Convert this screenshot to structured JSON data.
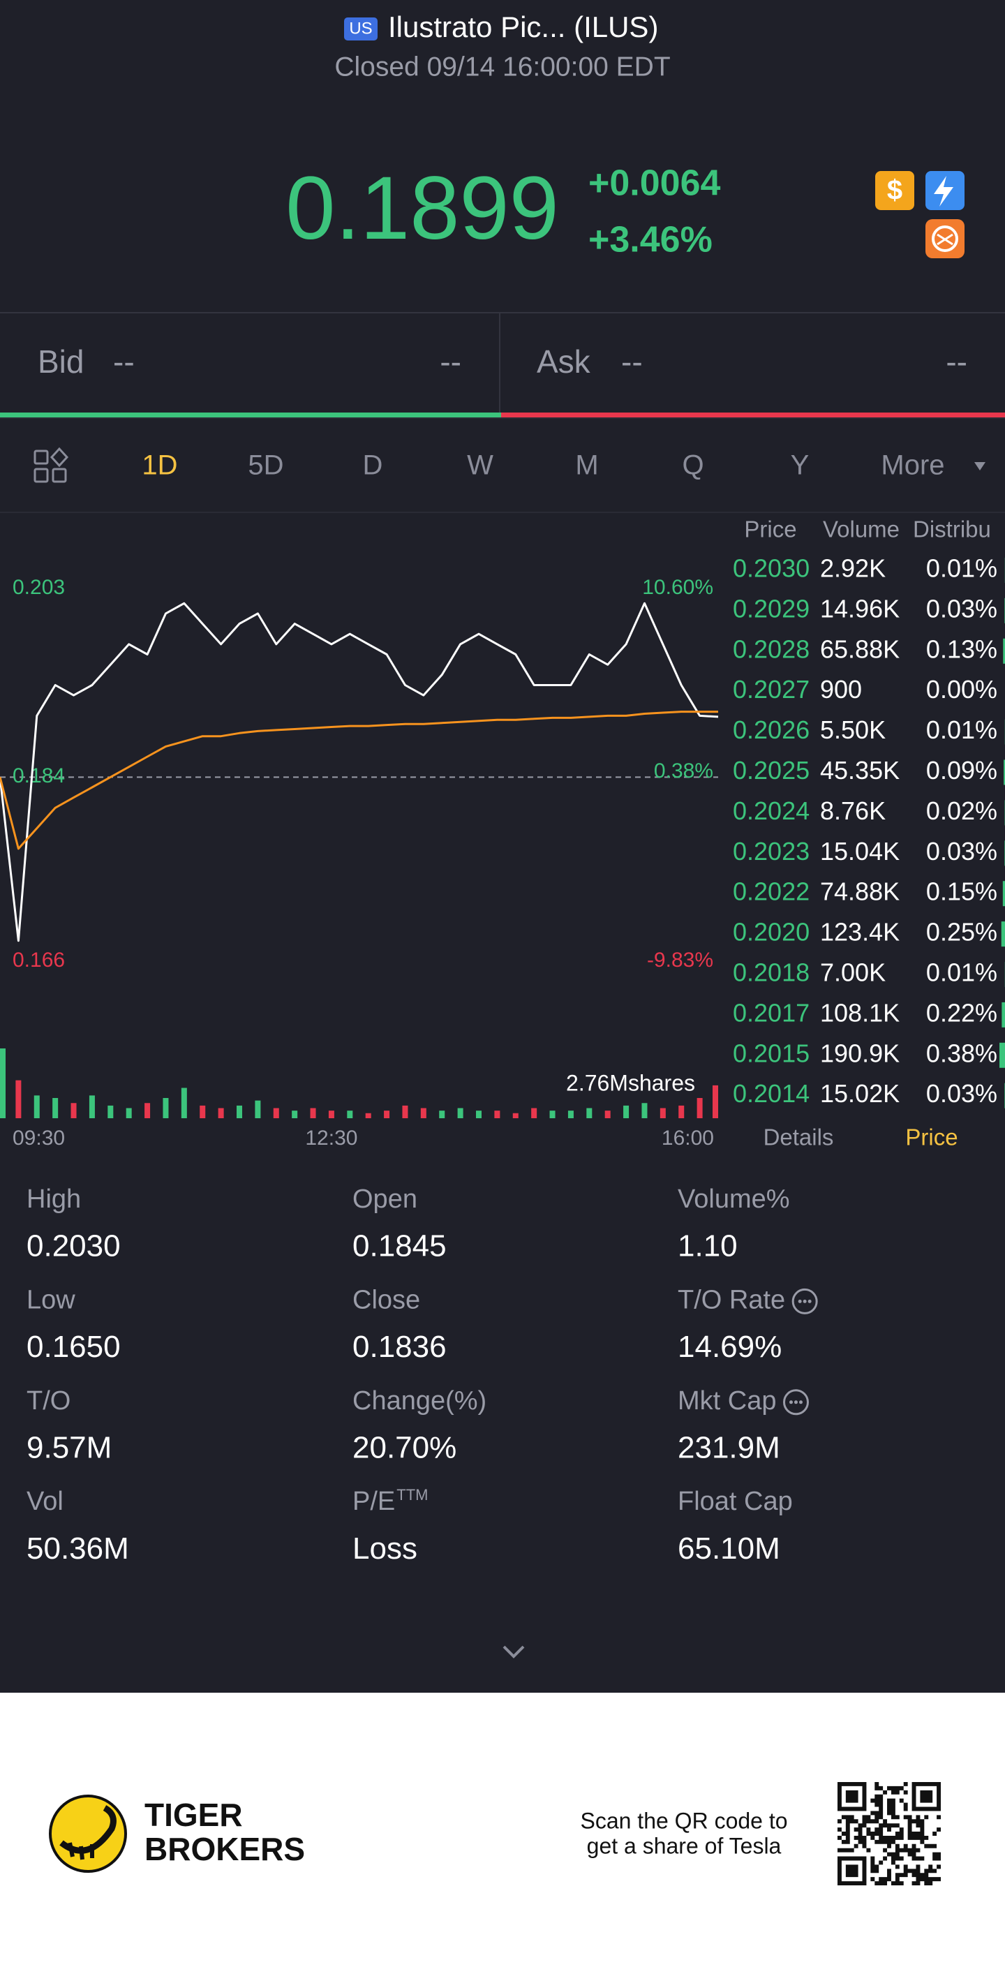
{
  "header": {
    "market_badge": "US",
    "name": "Ilustrato Pic... (ILUS)",
    "status": "Closed 09/14 16:00:00 EDT"
  },
  "quote": {
    "price": "0.1899",
    "change": "+0.0064",
    "change_pct": "+3.46%"
  },
  "bid_ask": {
    "bid_label": "Bid",
    "bid_price": "--",
    "bid_size": "--",
    "ask_label": "Ask",
    "ask_price": "--",
    "ask_size": "--"
  },
  "tabs": {
    "items": [
      "1D",
      "5D",
      "D",
      "W",
      "M",
      "Q",
      "Y",
      "More"
    ],
    "active": "1D"
  },
  "chart_data": {
    "type": "line",
    "x": [
      "09:30",
      "09:40",
      "09:50",
      "10:00",
      "10:10",
      "10:20",
      "10:30",
      "10:40",
      "10:50",
      "11:00",
      "11:10",
      "11:20",
      "11:30",
      "11:40",
      "11:50",
      "12:00",
      "12:10",
      "12:20",
      "12:30",
      "12:40",
      "12:50",
      "13:00",
      "13:10",
      "13:20",
      "13:30",
      "13:40",
      "13:50",
      "14:00",
      "14:10",
      "14:20",
      "14:30",
      "14:40",
      "14:50",
      "15:00",
      "15:10",
      "15:20",
      "15:30",
      "15:40",
      "15:50",
      "16:00"
    ],
    "series": [
      {
        "color": "#ffffff",
        "values": [
          0.184,
          0.168,
          0.19,
          0.193,
          0.192,
          0.193,
          0.195,
          0.197,
          0.196,
          0.2,
          0.201,
          0.199,
          0.197,
          0.199,
          0.2,
          0.197,
          0.199,
          0.198,
          0.197,
          0.198,
          0.197,
          0.196,
          0.193,
          0.192,
          0.194,
          0.197,
          0.198,
          0.197,
          0.196,
          0.193,
          0.193,
          0.193,
          0.196,
          0.195,
          0.197,
          0.201,
          0.197,
          0.193,
          0.19,
          0.1899
        ]
      },
      {
        "color": "#f7931e",
        "values": [
          0.184,
          0.177,
          0.179,
          0.181,
          0.182,
          0.183,
          0.184,
          0.185,
          0.186,
          0.187,
          0.1875,
          0.188,
          0.188,
          0.1883,
          0.1885,
          0.1886,
          0.1887,
          0.1888,
          0.1889,
          0.189,
          0.189,
          0.1891,
          0.1892,
          0.1892,
          0.1893,
          0.1894,
          0.1895,
          0.1896,
          0.1896,
          0.1897,
          0.1898,
          0.1898,
          0.1899,
          0.19,
          0.19,
          0.1902,
          0.1903,
          0.1904,
          0.1904,
          0.1904
        ]
      }
    ],
    "ylim": [
      0.166,
      0.203
    ],
    "yticks": [
      0.166,
      0.184,
      0.203
    ],
    "y2lim": [
      -9.83,
      10.6
    ],
    "y2ticks": [
      {
        "value": -9.83,
        "label": "-9.83%"
      },
      {
        "value": 0.38,
        "label": "0.38%"
      },
      {
        "value": 10.6,
        "label": "10.60%"
      }
    ],
    "reference_line": 0.184,
    "xticks": [
      "09:30",
      "12:30",
      "16:00"
    ],
    "up_color": "#3cc47c",
    "down_color": "#e8374d",
    "volume": {
      "label": "2.76Mshares",
      "values": [
        2.76,
        1.5,
        0.9,
        0.8,
        0.6,
        0.9,
        0.5,
        0.4,
        0.6,
        0.8,
        1.2,
        0.5,
        0.4,
        0.5,
        0.7,
        0.4,
        0.3,
        0.4,
        0.3,
        0.3,
        0.2,
        0.3,
        0.5,
        0.4,
        0.3,
        0.4,
        0.3,
        0.3,
        0.2,
        0.4,
        0.3,
        0.3,
        0.4,
        0.3,
        0.5,
        0.6,
        0.4,
        0.5,
        0.8,
        1.3
      ]
    }
  },
  "order_book": {
    "headers": [
      "Price",
      "Volume",
      "Distribu"
    ],
    "prices": [
      "0.2030",
      "0.2029",
      "0.2028",
      "0.2027",
      "0.2026",
      "0.2025",
      "0.2024",
      "0.2023",
      "0.2022",
      "0.2020",
      "0.2018",
      "0.2017",
      "0.2015",
      "0.2014"
    ],
    "volumes": [
      "2.92K",
      "14.96K",
      "65.88K",
      "900",
      "5.50K",
      "45.35K",
      "8.76K",
      "15.04K",
      "74.88K",
      "123.4K",
      "7.00K",
      "108.1K",
      "190.9K",
      "15.02K"
    ],
    "shares": [
      0.01,
      0.03,
      0.13,
      0.0,
      0.01,
      0.09,
      0.02,
      0.03,
      0.15,
      0.25,
      0.01,
      0.22,
      0.38,
      0.03
    ],
    "share_labels": [
      "0.01%",
      "0.03%",
      "0.13%",
      "0.00%",
      "0.01%",
      "0.09%",
      "0.02%",
      "0.03%",
      "0.15%",
      "0.25%",
      "0.01%",
      "0.22%",
      "0.38%",
      "0.03%"
    ],
    "tabs": [
      "Details",
      "Price"
    ],
    "active": "Price"
  },
  "stats": [
    {
      "label": "High",
      "value": "0.2030"
    },
    {
      "label": "Open",
      "value": "0.1845"
    },
    {
      "label": "Volume%",
      "value": "1.10"
    },
    {
      "label": "Low",
      "value": "0.1650"
    },
    {
      "label": "Close",
      "value": "0.1836"
    },
    {
      "label": "T/O Rate",
      "value": "14.69%",
      "info": true
    },
    {
      "label": "T/O",
      "value": "9.57M"
    },
    {
      "label": "Change(%)",
      "value": "20.70%"
    },
    {
      "label": "Mkt Cap",
      "value": "231.9M",
      "info": true
    },
    {
      "label": "Vol",
      "value": "50.36M"
    },
    {
      "label": "P/E",
      "sup": "TTM",
      "value": "Loss"
    },
    {
      "label": "Float Cap",
      "value": "65.10M"
    }
  ],
  "footer": {
    "brand_line1": "TIGER",
    "brand_line2": "BROKERS",
    "promo_line1": "Scan the QR code to",
    "promo_line2": "get a share of Tesla"
  }
}
